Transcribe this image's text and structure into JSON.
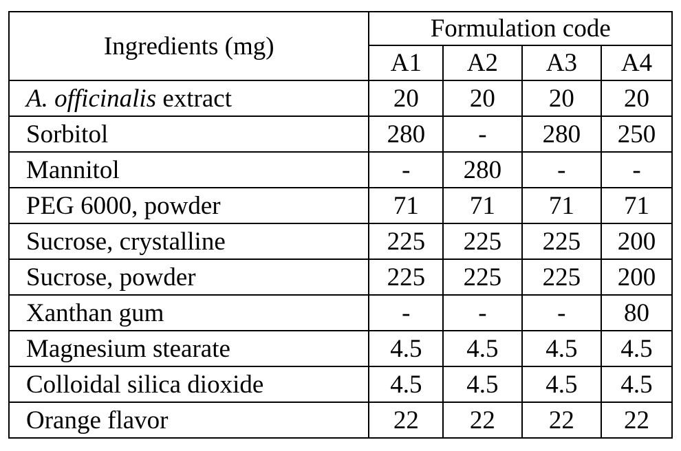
{
  "table": {
    "ingredients_header": "Ingredients (mg)",
    "group_header": "Formulation code",
    "columns": [
      "A1",
      "A2",
      "A3",
      "A4"
    ],
    "rows": [
      {
        "label_italic": "A. officinalis",
        "label_rest": " extract",
        "values": [
          "20",
          "20",
          "20",
          "20"
        ]
      },
      {
        "label_italic": "",
        "label_rest": "Sorbitol",
        "values": [
          "280",
          "-",
          "280",
          "250"
        ]
      },
      {
        "label_italic": "",
        "label_rest": "Mannitol",
        "values": [
          "-",
          "280",
          "-",
          "-"
        ]
      },
      {
        "label_italic": "",
        "label_rest": "PEG 6000, powder",
        "values": [
          "71",
          "71",
          "71",
          "71"
        ]
      },
      {
        "label_italic": "",
        "label_rest": "Sucrose, crystalline",
        "values": [
          "225",
          "225",
          "225",
          "200"
        ]
      },
      {
        "label_italic": "",
        "label_rest": "Sucrose, powder",
        "values": [
          "225",
          "225",
          "225",
          "200"
        ]
      },
      {
        "label_italic": "",
        "label_rest": "Xanthan gum",
        "values": [
          "-",
          "-",
          "-",
          "80"
        ]
      },
      {
        "label_italic": "",
        "label_rest": "Magnesium stearate",
        "values": [
          "4.5",
          "4.5",
          "4.5",
          "4.5"
        ]
      },
      {
        "label_italic": "",
        "label_rest": "Colloidal silica dioxide",
        "values": [
          "4.5",
          "4.5",
          "4.5",
          "4.5"
        ]
      },
      {
        "label_italic": "",
        "label_rest": "Orange flavor",
        "values": [
          "22",
          "22",
          "22",
          "22"
        ]
      }
    ]
  }
}
